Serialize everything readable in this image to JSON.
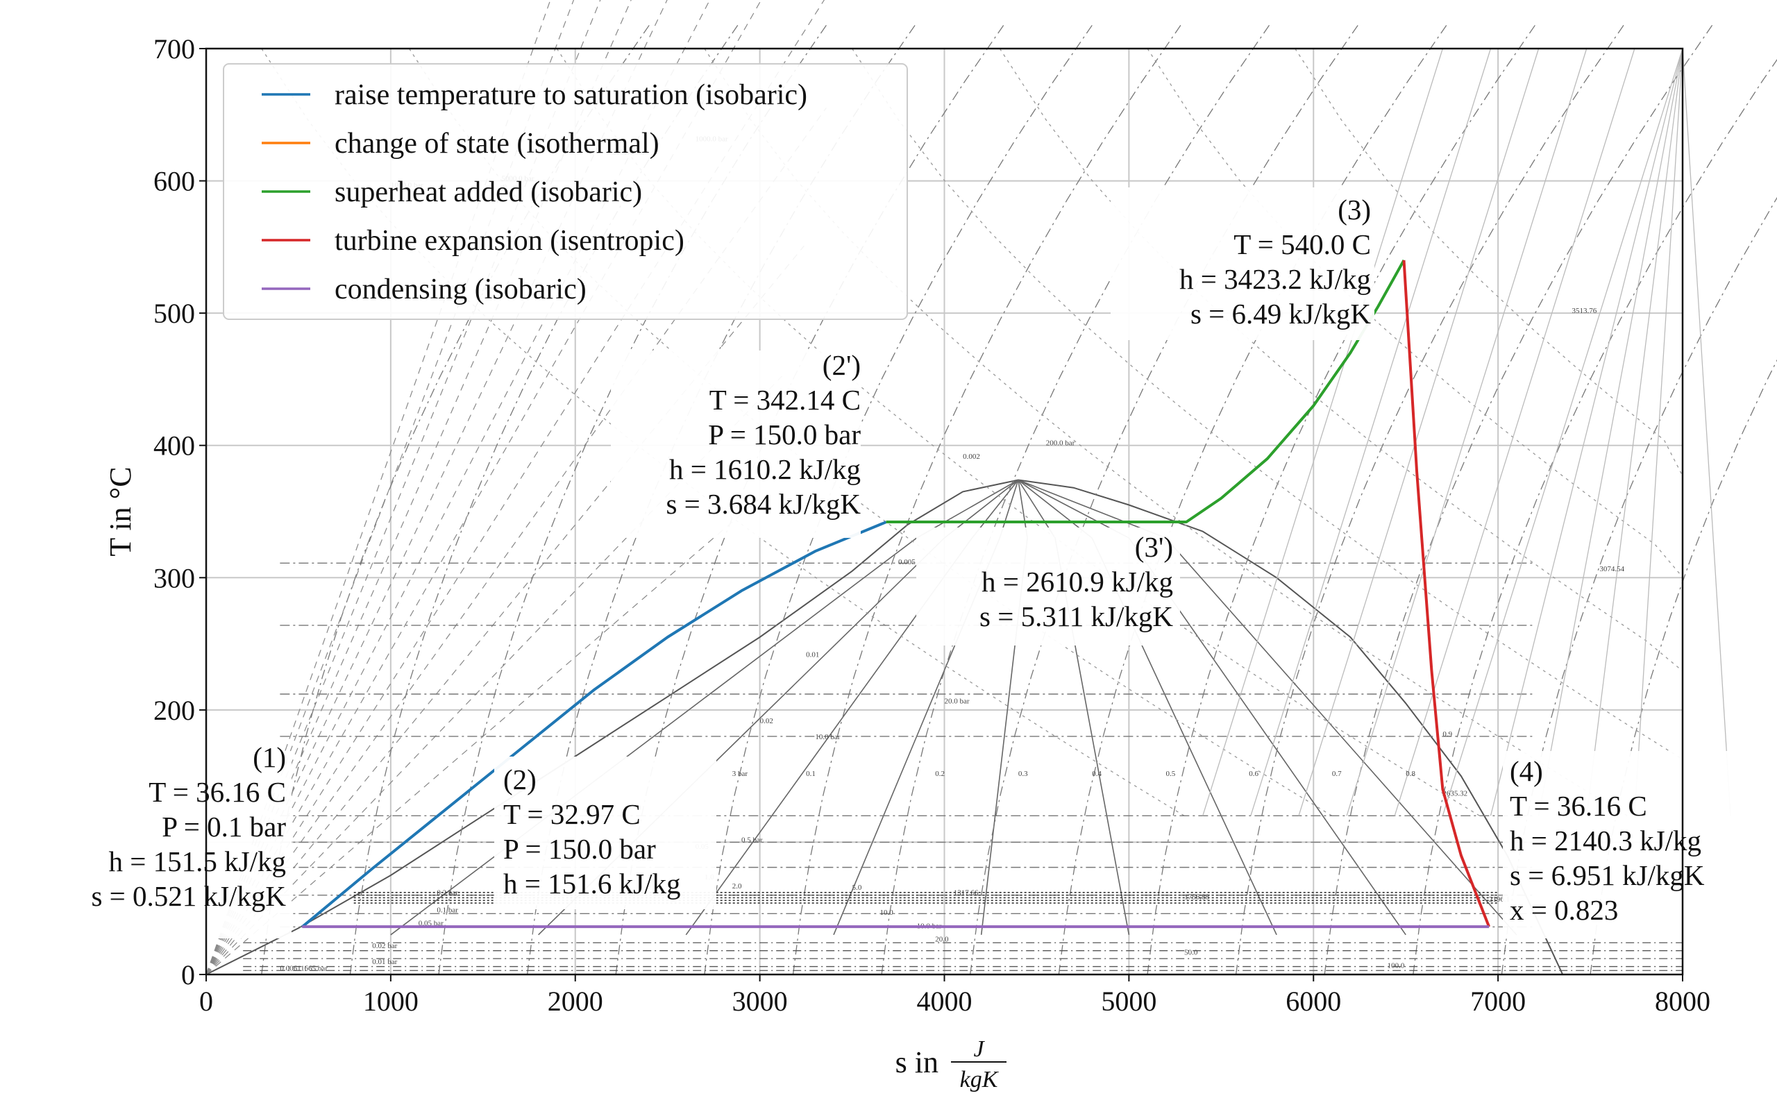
{
  "chart_data": {
    "type": "line",
    "xlabel": "s in",
    "xlabel_unit_num": "J",
    "xlabel_unit_den": "kgK",
    "ylabel": "T in °C",
    "xlim": [
      0,
      8000
    ],
    "ylim": [
      0,
      700
    ],
    "grid": true,
    "legend_position": "upper-left",
    "x_ticks": [
      0,
      1000,
      2000,
      3000,
      4000,
      5000,
      6000,
      7000,
      8000
    ],
    "y_ticks": [
      0,
      200,
      300,
      400,
      500,
      600,
      700
    ],
    "colors": {
      "blue": "#1f77b4",
      "orange": "#ff7f0e",
      "green": "#2ca02c",
      "red": "#d62728",
      "purple": "#9467bd"
    },
    "series": [
      {
        "name": "raise temperature to saturation (isobaric)",
        "color": "#1f77b4",
        "x": [
          520,
          900,
          1300,
          1700,
          2100,
          2500,
          2900,
          3300,
          3684
        ],
        "y": [
          36,
          80,
          125,
          170,
          215,
          255,
          290,
          320,
          342
        ]
      },
      {
        "name": "change of state (isothermal)",
        "color": "#ff7f0e",
        "x": [
          3684,
          5311
        ],
        "y": [
          342.14,
          342.14
        ]
      },
      {
        "name": "superheat added (isobaric)",
        "color": "#2ca02c",
        "x": [
          3684,
          5311,
          5500,
          5750,
          6000,
          6200,
          6350,
          6490
        ],
        "y": [
          342.14,
          342.14,
          360,
          390,
          430,
          470,
          505,
          540
        ]
      },
      {
        "name": "turbine expansion (isentropic)",
        "color": "#d62728",
        "x": [
          6490,
          6560,
          6640,
          6700,
          6800,
          6951
        ],
        "y": [
          540,
          380,
          230,
          140,
          90,
          36.16
        ]
      },
      {
        "name": "condensing (isobaric)",
        "color": "#9467bd",
        "x": [
          520,
          6951
        ],
        "y": [
          36.16,
          36.16
        ]
      }
    ],
    "annotations": [
      {
        "id": "state-1",
        "lines": [
          "(1)",
          "T = 36.16 C",
          "P = 0.1 bar",
          "h = 151.5 kJ/kg",
          "s = 0.521 kJ/kgK"
        ]
      },
      {
        "id": "state-2",
        "lines": [
          "(2)",
          "T = 32.97 C",
          "P = 150.0 bar",
          "h = 151.6 kJ/kg"
        ]
      },
      {
        "id": "state-2p",
        "lines": [
          "(2')",
          "T = 342.14 C",
          "P = 150.0 bar",
          "h = 1610.2 kJ/kg",
          "s = 3.684 kJ/kgK"
        ]
      },
      {
        "id": "state-3p",
        "lines": [
          "(3')",
          "h = 2610.9 kJ/kg",
          "s = 5.311 kJ/kgK"
        ]
      },
      {
        "id": "state-3",
        "lines": [
          "(3)",
          "T = 540.0 C",
          "h = 3423.2 kJ/kg",
          "s = 6.49 kJ/kgK"
        ]
      },
      {
        "id": "state-4",
        "lines": [
          "(4)",
          "T = 36.16 C",
          "h = 2140.3 kJ/kg",
          "s = 6.951 kJ/kgK",
          "x = 0.823"
        ]
      }
    ],
    "background_labels": [
      "1000.0 bar",
      "5000.0 bar",
      "2000.0 bar",
      "1000.0 bar",
      "200.0 bar",
      "20.0 bar",
      "10.0 bar",
      "3 bar",
      "0.5 bar",
      "0.2 bar",
      "0.1 bar",
      "0.05 bar",
      "0.02 bar",
      "0.01 bar",
      "0.00611665 bar",
      "10.0 bar",
      "3513.76",
      "3074.54",
      "2635.32",
      "2196.1",
      "1756.88",
      "1317.66",
      "0.002",
      "0.005",
      "0.01",
      "0.02",
      "0.05",
      "1.0",
      "2.0",
      "5.0",
      "10.0",
      "20.0",
      "50.0",
      "100.0",
      "0.1",
      "0.2",
      "0.3",
      "0.4",
      "0.5",
      "0.6",
      "0.7",
      "0.8",
      "0.9"
    ]
  }
}
